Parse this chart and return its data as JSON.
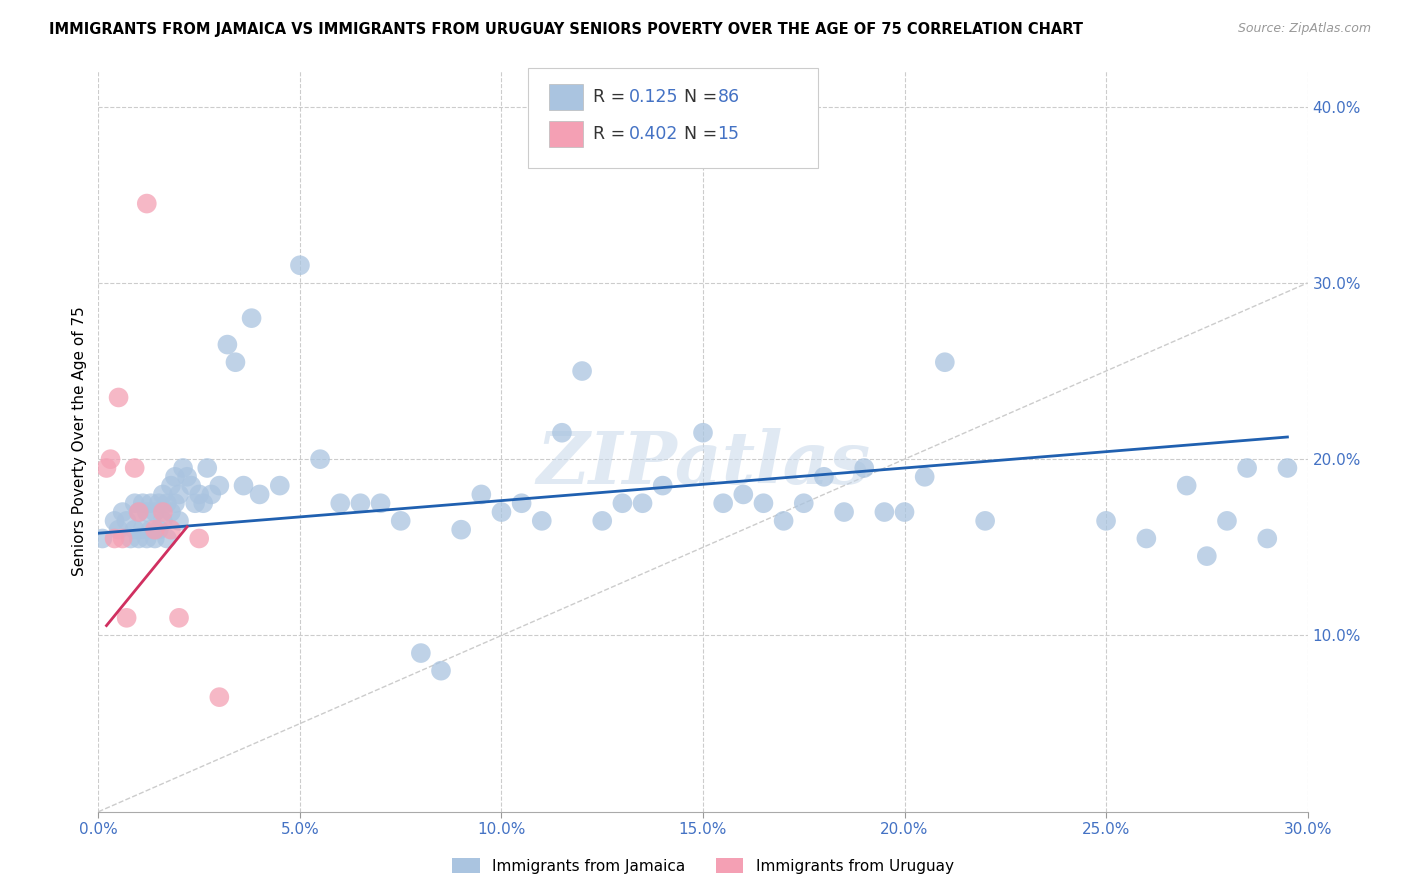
{
  "title": "IMMIGRANTS FROM JAMAICA VS IMMIGRANTS FROM URUGUAY SENIORS POVERTY OVER THE AGE OF 75 CORRELATION CHART",
  "source": "Source: ZipAtlas.com",
  "ylabel_label": "Seniors Poverty Over the Age of 75",
  "xlim": [
    0.0,
    0.3
  ],
  "ylim": [
    0.0,
    0.42
  ],
  "xticks": [
    0.0,
    0.05,
    0.1,
    0.15,
    0.2,
    0.25,
    0.3
  ],
  "yticks_right": [
    0.1,
    0.2,
    0.3,
    0.4
  ],
  "yticks_right_labels": [
    "10.0%",
    "20.0%",
    "30.0%",
    "40.0%"
  ],
  "xticks_labels": [
    "0.0%",
    "5.0%",
    "10.0%",
    "15.0%",
    "20.0%",
    "25.0%",
    "30.0%"
  ],
  "jamaica_color": "#aac4e0",
  "uruguay_color": "#f4a0b4",
  "jamaica_line_color": "#2060b0",
  "uruguay_line_color": "#d03060",
  "diagonal_color": "#cccccc",
  "watermark": "ZIPatlas",
  "legend_R_jamaica": "0.125",
  "legend_N_jamaica": "86",
  "legend_R_uruguay": "0.402",
  "legend_N_uruguay": "15",
  "jamaica_intercept": 0.158,
  "jamaica_slope": 0.185,
  "uruguay_intercept": 0.1,
  "uruguay_slope": 2.8,
  "uruguay_line_xmin": 0.002,
  "uruguay_line_xmax": 0.022,
  "jamaica_x": [
    0.001,
    0.004,
    0.005,
    0.006,
    0.007,
    0.008,
    0.009,
    0.009,
    0.01,
    0.01,
    0.011,
    0.011,
    0.012,
    0.012,
    0.013,
    0.013,
    0.014,
    0.014,
    0.015,
    0.015,
    0.016,
    0.016,
    0.017,
    0.017,
    0.018,
    0.018,
    0.019,
    0.019,
    0.02,
    0.02,
    0.021,
    0.022,
    0.023,
    0.024,
    0.025,
    0.026,
    0.027,
    0.028,
    0.03,
    0.032,
    0.034,
    0.036,
    0.038,
    0.04,
    0.045,
    0.05,
    0.055,
    0.06,
    0.065,
    0.07,
    0.075,
    0.08,
    0.085,
    0.09,
    0.095,
    0.1,
    0.105,
    0.11,
    0.115,
    0.12,
    0.125,
    0.13,
    0.135,
    0.14,
    0.15,
    0.155,
    0.16,
    0.165,
    0.17,
    0.175,
    0.18,
    0.185,
    0.19,
    0.195,
    0.2,
    0.205,
    0.21,
    0.22,
    0.25,
    0.26,
    0.27,
    0.275,
    0.28,
    0.285,
    0.29,
    0.295
  ],
  "jamaica_y": [
    0.155,
    0.165,
    0.16,
    0.17,
    0.165,
    0.155,
    0.16,
    0.175,
    0.155,
    0.17,
    0.16,
    0.175,
    0.155,
    0.17,
    0.16,
    0.175,
    0.155,
    0.17,
    0.16,
    0.175,
    0.165,
    0.18,
    0.155,
    0.175,
    0.17,
    0.185,
    0.175,
    0.19,
    0.165,
    0.18,
    0.195,
    0.19,
    0.185,
    0.175,
    0.18,
    0.175,
    0.195,
    0.18,
    0.185,
    0.265,
    0.255,
    0.185,
    0.28,
    0.18,
    0.185,
    0.31,
    0.2,
    0.175,
    0.175,
    0.175,
    0.165,
    0.09,
    0.08,
    0.16,
    0.18,
    0.17,
    0.175,
    0.165,
    0.215,
    0.25,
    0.165,
    0.175,
    0.175,
    0.185,
    0.215,
    0.175,
    0.18,
    0.175,
    0.165,
    0.175,
    0.19,
    0.17,
    0.195,
    0.17,
    0.17,
    0.19,
    0.255,
    0.165,
    0.165,
    0.155,
    0.185,
    0.145,
    0.165,
    0.195,
    0.155,
    0.195
  ],
  "uruguay_x": [
    0.002,
    0.003,
    0.004,
    0.005,
    0.006,
    0.007,
    0.009,
    0.01,
    0.012,
    0.014,
    0.016,
    0.018,
    0.02,
    0.025,
    0.03
  ],
  "uruguay_y": [
    0.195,
    0.2,
    0.155,
    0.235,
    0.155,
    0.11,
    0.195,
    0.17,
    0.345,
    0.16,
    0.17,
    0.16,
    0.11,
    0.155,
    0.065
  ]
}
